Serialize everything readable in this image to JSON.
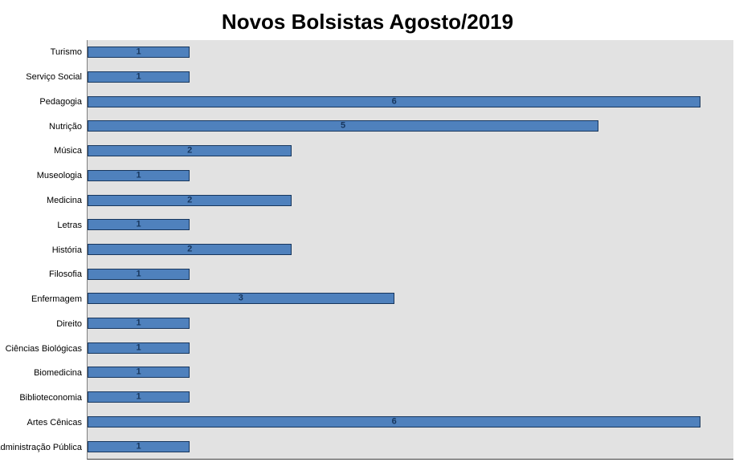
{
  "title": "Novos Bolsistas Agosto/2019",
  "chart_data": {
    "type": "bar",
    "orientation": "horizontal",
    "title": "Novos Bolsistas Agosto/2019",
    "categories": [
      "Turismo",
      "Serviço Social",
      "Pedagogia",
      "Nutrição",
      "Música",
      "Museologia",
      "Medicina",
      "Letras",
      "História",
      "Filosofia",
      "Enfermagem",
      "Direito",
      "Ciências Biológicas",
      "Biomedicina",
      "Biblioteconomia",
      "Artes Cênicas",
      "Administração Pública"
    ],
    "values": [
      1,
      1,
      6,
      5,
      2,
      1,
      2,
      1,
      2,
      1,
      3,
      1,
      1,
      1,
      1,
      6,
      1
    ],
    "data_labels": [
      "1",
      "1",
      "6",
      "5",
      "2",
      "1",
      "2",
      "1",
      "2",
      "1",
      "3",
      "1",
      "1",
      "1",
      "1",
      "6",
      "1"
    ],
    "xlabel": "",
    "ylabel": "",
    "xlim": [
      0,
      6.32
    ],
    "grid": false,
    "legend": false,
    "colors": {
      "bar_fill": "#4f81bd",
      "bar_border": "#17365d",
      "plot_background": "#e2e2e2",
      "value_label": "#17365d",
      "title": "#000000"
    }
  }
}
